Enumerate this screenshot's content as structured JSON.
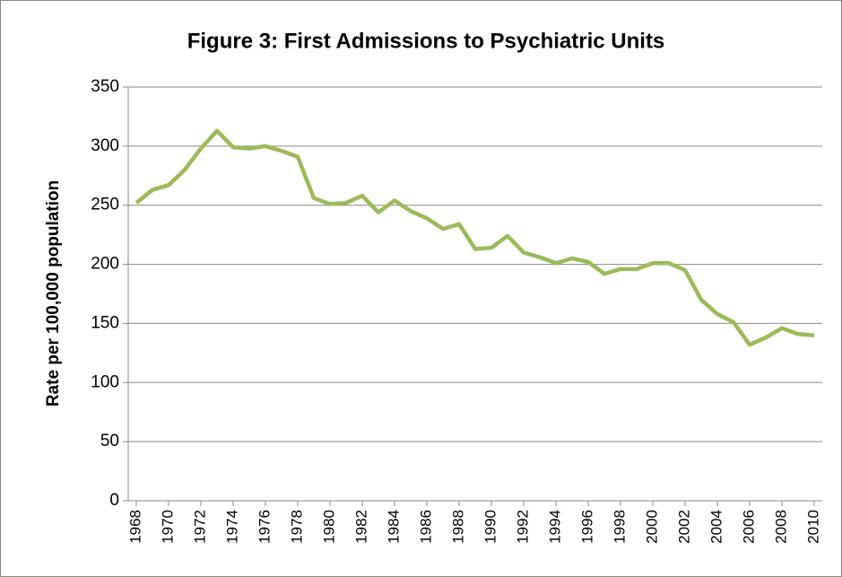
{
  "chart_data": {
    "type": "line",
    "title": "Figure 3: First Admissions to Psychiatric Units",
    "y_label": "Rate per 100,000 population",
    "x": [
      1968,
      1969,
      1970,
      1971,
      1972,
      1973,
      1974,
      1975,
      1976,
      1977,
      1978,
      1979,
      1980,
      1981,
      1982,
      1983,
      1984,
      1985,
      1986,
      1987,
      1988,
      1989,
      1990,
      1991,
      1992,
      1993,
      1994,
      1995,
      1996,
      1997,
      1998,
      1999,
      2000,
      2001,
      2002,
      2003,
      2004,
      2005,
      2006,
      2007,
      2008,
      2009,
      2010
    ],
    "series": [
      {
        "color": "#9bbb59",
        "values": [
          252,
          263,
          267,
          280,
          298,
          313,
          299,
          298,
          300,
          296,
          291,
          256,
          251,
          252,
          258,
          244,
          254,
          245,
          239,
          230,
          234,
          213,
          214,
          224,
          210,
          206,
          201,
          205,
          202,
          192,
          196,
          196,
          201,
          201,
          195,
          170,
          158,
          151,
          132,
          138,
          146,
          141,
          140
        ]
      }
    ],
    "xlim": [
      1967.5,
      2010.5
    ],
    "xticks": [
      1968,
      1970,
      1972,
      1974,
      1976,
      1978,
      1980,
      1982,
      1984,
      1986,
      1988,
      1990,
      1992,
      1994,
      1996,
      1998,
      2000,
      2002,
      2004,
      2006,
      2008,
      2010
    ],
    "ylim": [
      0,
      350
    ],
    "yticks": [
      0,
      50,
      100,
      150,
      200,
      250,
      300,
      350
    ],
    "grid": true
  }
}
